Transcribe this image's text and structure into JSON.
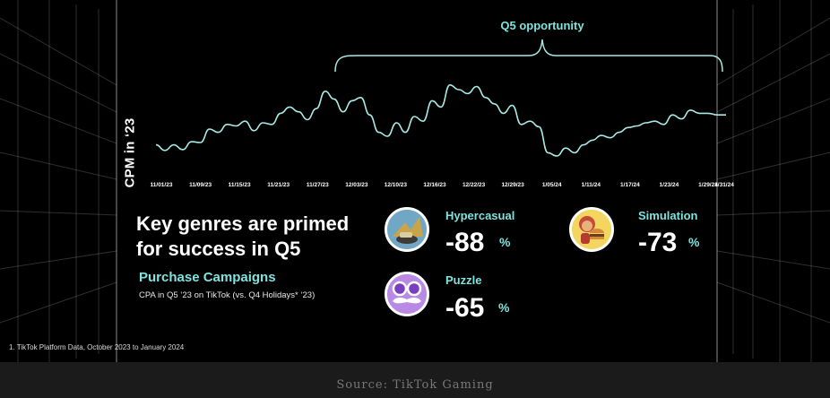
{
  "chart_data": {
    "type": "line",
    "ylabel": "CPM in ‘23",
    "xlabel": "",
    "title": "",
    "x_ticks": [
      "11/01/23",
      "11/09/23",
      "11/15/23",
      "11/21/23",
      "11/27/23",
      "12/03/23",
      "12/10/23",
      "12/16/23",
      "12/22/23",
      "12/29/23",
      "1/05/24",
      "1/11/24",
      "1/17/24",
      "1/23/24",
      "1/29/24",
      "1/31/24"
    ],
    "series": [
      {
        "values": [
          0.22,
          0.15,
          0.22,
          0.16,
          0.26,
          0.25,
          0.42,
          0.38,
          0.48,
          0.46,
          0.52,
          0.4,
          0.5,
          0.48,
          0.62,
          0.7,
          0.64,
          0.54,
          0.68,
          0.9,
          0.8,
          0.64,
          0.78,
          0.82,
          0.6,
          0.38,
          0.33,
          0.5,
          0.38,
          0.58,
          0.52,
          0.78,
          0.7,
          0.98,
          0.92,
          0.87,
          0.96,
          0.82,
          0.74,
          0.62,
          0.72,
          0.48,
          0.52,
          0.45,
          0.12,
          0.08,
          0.18,
          0.12,
          0.22,
          0.28,
          0.34,
          0.31,
          0.38,
          0.44,
          0.46,
          0.5,
          0.52,
          0.48,
          0.6,
          0.55,
          0.66,
          0.62,
          0.62,
          0.6,
          0.6
        ]
      }
    ],
    "annotation": "Q5 opportunity",
    "grid": false
  },
  "headline": "Key genres are primed for success in Q5",
  "subhead": "Purchase Campaigns",
  "subnote": "CPA in Q5 ’23 on TikTok (vs. Q4 Holidays* ‘23)",
  "genres": [
    {
      "name": "Hypercasual",
      "value": "-88",
      "unit": "%",
      "icon": "hypercasual-icon"
    },
    {
      "name": "Simulation",
      "value": "-73",
      "unit": "%",
      "icon": "burger-icon"
    },
    {
      "name": "Puzzle",
      "value": "-65",
      "unit": "%",
      "icon": "mustache-icon"
    }
  ],
  "footnote": "1. TikTok Platform Data, October 2023 to January 2024",
  "source": "Source: TikTok Gaming",
  "colors": {
    "accent": "#7fe3de",
    "line": "#a7e9e4",
    "background": "#000000"
  }
}
